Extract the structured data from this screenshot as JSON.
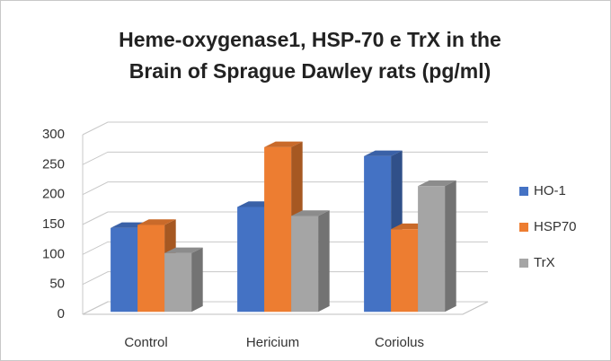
{
  "chart_data": {
    "type": "bar3d",
    "title": [
      "Heme-oxygenase1, HSP-70 e TrX in the",
      "Brain of Sprague Dawley rats  (pg/ml)"
    ],
    "categories": [
      "Control",
      "Hericium",
      "Coriolus"
    ],
    "series": [
      {
        "name": "HO-1",
        "color": "#4472c4",
        "values": [
          140,
          175,
          260
        ]
      },
      {
        "name": "HSP70",
        "color": "#ed7d31",
        "values": [
          145,
          275,
          138
        ]
      },
      {
        "name": "TrX",
        "color": "#a5a5a5",
        "values": [
          98,
          160,
          210
        ]
      }
    ],
    "ylim": [
      0,
      300
    ],
    "yticks": [
      0,
      50,
      100,
      150,
      200,
      250,
      300
    ],
    "grid": true,
    "legend": "right"
  }
}
